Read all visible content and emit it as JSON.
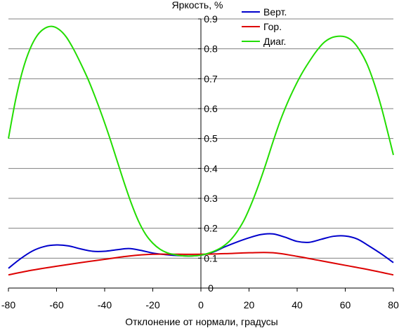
{
  "chart_data": {
    "type": "line",
    "title": "",
    "xlabel": "Отклонение от нормали, градусы",
    "ylabel": "Яркость, %",
    "xlim": [
      -80,
      80
    ],
    "ylim": [
      0,
      0.9
    ],
    "xticks": [
      -80,
      -60,
      -40,
      -20,
      0,
      20,
      40,
      60,
      80
    ],
    "yticks": [
      0,
      0.1,
      0.2,
      0.3,
      0.4,
      0.5,
      0.6,
      0.7,
      0.8,
      0.9
    ],
    "ytick_labels": [
      "0",
      "0.1",
      "0.2",
      "0.3",
      "0.4",
      "0.5",
      "0.6",
      "0.7",
      "0.8",
      "0.9"
    ],
    "grid": "horizontal",
    "legend_position": "top-right",
    "series": [
      {
        "name": "Верт.",
        "color": "#0000cc",
        "x": [
          -80,
          -75,
          -70,
          -65,
          -60,
          -55,
          -50,
          -45,
          -40,
          -35,
          -30,
          -25,
          -20,
          -15,
          -10,
          -5,
          0,
          5,
          10,
          15,
          20,
          25,
          30,
          35,
          40,
          45,
          50,
          55,
          60,
          65,
          70,
          75,
          80
        ],
        "y": [
          0.066,
          0.098,
          0.124,
          0.139,
          0.144,
          0.141,
          0.131,
          0.123,
          0.123,
          0.128,
          0.132,
          0.126,
          0.117,
          0.112,
          0.109,
          0.107,
          0.11,
          0.12,
          0.138,
          0.154,
          0.168,
          0.179,
          0.181,
          0.17,
          0.156,
          0.153,
          0.163,
          0.173,
          0.174,
          0.164,
          0.14,
          0.114,
          0.085
        ]
      },
      {
        "name": "Гор.",
        "color": "#dd0000",
        "x": [
          -80,
          -70,
          -60,
          -50,
          -40,
          -30,
          -20,
          -10,
          0,
          10,
          20,
          30,
          40,
          50,
          60,
          70,
          80
        ],
        "y": [
          0.044,
          0.06,
          0.073,
          0.085,
          0.096,
          0.107,
          0.113,
          0.113,
          0.113,
          0.115,
          0.118,
          0.118,
          0.106,
          0.091,
          0.076,
          0.061,
          0.044
        ]
      },
      {
        "name": "Диаг.",
        "color": "#22dd00",
        "x": [
          -80,
          -77,
          -74,
          -71,
          -68,
          -65,
          -62,
          -59,
          -56,
          -53,
          -50,
          -47,
          -44,
          -41,
          -38,
          -35,
          -32,
          -29,
          -26,
          -23,
          -20,
          -17,
          -14,
          -11,
          -8,
          -5,
          -2,
          0,
          3,
          6,
          9,
          12,
          15,
          18,
          21,
          24,
          27,
          30,
          33,
          36,
          39,
          42,
          45,
          48,
          51,
          54,
          57,
          60,
          63,
          66,
          69,
          72,
          75,
          78,
          80
        ],
        "y": [
          0.5,
          0.63,
          0.73,
          0.8,
          0.845,
          0.868,
          0.875,
          0.865,
          0.84,
          0.8,
          0.752,
          0.7,
          0.64,
          0.575,
          0.505,
          0.43,
          0.355,
          0.285,
          0.225,
          0.18,
          0.15,
          0.13,
          0.118,
          0.112,
          0.108,
          0.107,
          0.108,
          0.11,
          0.116,
          0.125,
          0.138,
          0.158,
          0.188,
          0.228,
          0.282,
          0.345,
          0.415,
          0.49,
          0.56,
          0.62,
          0.672,
          0.718,
          0.757,
          0.792,
          0.82,
          0.836,
          0.842,
          0.84,
          0.826,
          0.795,
          0.75,
          0.685,
          0.605,
          0.51,
          0.445
        ]
      }
    ]
  }
}
